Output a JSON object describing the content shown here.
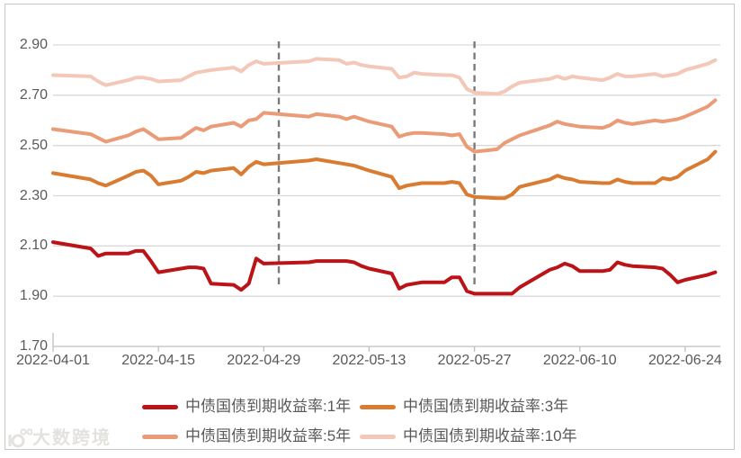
{
  "watermark": {
    "logo": "10°°",
    "text": "大数跨境"
  },
  "chart_data": {
    "type": "line",
    "title": "",
    "xlabel": "",
    "ylabel": "",
    "ylim": [
      1.7,
      2.9
    ],
    "grid": true,
    "legend_position": "bottom",
    "y_ticks": [
      2.9,
      2.7,
      2.5,
      2.3,
      2.1,
      1.9,
      1.7
    ],
    "y_ticklabels": [
      "2.90",
      "2.70",
      "2.50",
      "2.30",
      "2.10",
      "1.90",
      "1.70"
    ],
    "x_ticks": [
      "2022-04-01",
      "2022-04-15",
      "2022-04-29",
      "2022-05-13",
      "2022-05-27",
      "2022-06-10",
      "2022-06-24"
    ],
    "vlines": [
      {
        "date": "2022-05-01",
        "style": "dashed",
        "color": "#7a7a7a"
      },
      {
        "date": "2022-05-27",
        "style": "dashed",
        "color": "#7a7a7a"
      }
    ],
    "x": [
      "2022-04-01",
      "2022-04-06",
      "2022-04-07",
      "2022-04-08",
      "2022-04-11",
      "2022-04-12",
      "2022-04-13",
      "2022-04-14",
      "2022-04-15",
      "2022-04-18",
      "2022-04-19",
      "2022-04-20",
      "2022-04-21",
      "2022-04-22",
      "2022-04-25",
      "2022-04-26",
      "2022-04-27",
      "2022-04-28",
      "2022-04-29",
      "2022-05-05",
      "2022-05-06",
      "2022-05-09",
      "2022-05-10",
      "2022-05-11",
      "2022-05-12",
      "2022-05-13",
      "2022-05-16",
      "2022-05-17",
      "2022-05-18",
      "2022-05-19",
      "2022-05-20",
      "2022-05-23",
      "2022-05-24",
      "2022-05-25",
      "2022-05-26",
      "2022-05-27",
      "2022-05-30",
      "2022-05-31",
      "2022-06-01",
      "2022-06-02",
      "2022-06-06",
      "2022-06-07",
      "2022-06-08",
      "2022-06-09",
      "2022-06-10",
      "2022-06-13",
      "2022-06-14",
      "2022-06-15",
      "2022-06-16",
      "2022-06-17",
      "2022-06-20",
      "2022-06-21",
      "2022-06-22",
      "2022-06-23",
      "2022-06-24",
      "2022-06-27",
      "2022-06-28"
    ],
    "series": [
      {
        "name": "中债国债到期收益率:1年",
        "color": "#bb1418",
        "values": [
          2.115,
          2.09,
          2.06,
          2.07,
          2.07,
          2.08,
          2.08,
          2.04,
          1.995,
          2.01,
          2.015,
          2.015,
          2.01,
          1.95,
          1.945,
          1.925,
          1.95,
          2.05,
          2.03,
          2.035,
          2.04,
          2.04,
          2.04,
          2.035,
          2.02,
          2.01,
          1.99,
          1.93,
          1.945,
          1.95,
          1.955,
          1.955,
          1.975,
          1.975,
          1.92,
          1.91,
          1.91,
          1.91,
          1.91,
          1.935,
          2.005,
          2.015,
          2.03,
          2.02,
          2.0,
          2.0,
          2.005,
          2.035,
          2.025,
          2.02,
          2.015,
          2.01,
          1.985,
          1.955,
          1.965,
          1.985,
          1.995
        ]
      },
      {
        "name": "中债国债到期收益率:3年",
        "color": "#d97b31",
        "values": [
          2.39,
          2.365,
          2.35,
          2.34,
          2.38,
          2.395,
          2.4,
          2.38,
          2.345,
          2.36,
          2.375,
          2.395,
          2.39,
          2.4,
          2.41,
          2.385,
          2.415,
          2.435,
          2.425,
          2.44,
          2.445,
          2.43,
          2.425,
          2.42,
          2.41,
          2.4,
          2.375,
          2.33,
          2.34,
          2.345,
          2.35,
          2.35,
          2.355,
          2.35,
          2.305,
          2.295,
          2.29,
          2.29,
          2.305,
          2.335,
          2.365,
          2.38,
          2.37,
          2.365,
          2.355,
          2.35,
          2.35,
          2.365,
          2.355,
          2.35,
          2.35,
          2.37,
          2.365,
          2.375,
          2.4,
          2.445,
          2.475
        ]
      },
      {
        "name": "中债国债到期收益率:5年",
        "color": "#ea9b77",
        "values": [
          2.565,
          2.545,
          2.53,
          2.515,
          2.54,
          2.555,
          2.565,
          2.545,
          2.525,
          2.53,
          2.55,
          2.57,
          2.56,
          2.575,
          2.59,
          2.575,
          2.6,
          2.605,
          2.63,
          2.615,
          2.625,
          2.615,
          2.605,
          2.615,
          2.605,
          2.595,
          2.575,
          2.535,
          2.545,
          2.55,
          2.55,
          2.545,
          2.54,
          2.545,
          2.495,
          2.475,
          2.485,
          2.51,
          2.525,
          2.54,
          2.58,
          2.595,
          2.585,
          2.58,
          2.575,
          2.57,
          2.58,
          2.6,
          2.59,
          2.585,
          2.6,
          2.595,
          2.6,
          2.605,
          2.615,
          2.655,
          2.68
        ]
      },
      {
        "name": "中债国债到期收益率:10年",
        "color": "#f3c8b8",
        "values": [
          2.78,
          2.775,
          2.755,
          2.74,
          2.76,
          2.77,
          2.77,
          2.765,
          2.755,
          2.76,
          2.775,
          2.79,
          2.795,
          2.8,
          2.81,
          2.795,
          2.82,
          2.835,
          2.825,
          2.835,
          2.845,
          2.84,
          2.825,
          2.83,
          2.82,
          2.815,
          2.805,
          2.77,
          2.775,
          2.79,
          2.785,
          2.78,
          2.78,
          2.77,
          2.725,
          2.71,
          2.705,
          2.715,
          2.735,
          2.75,
          2.765,
          2.775,
          2.765,
          2.775,
          2.77,
          2.76,
          2.77,
          2.785,
          2.775,
          2.775,
          2.785,
          2.775,
          2.78,
          2.785,
          2.8,
          2.825,
          2.84
        ]
      }
    ]
  }
}
